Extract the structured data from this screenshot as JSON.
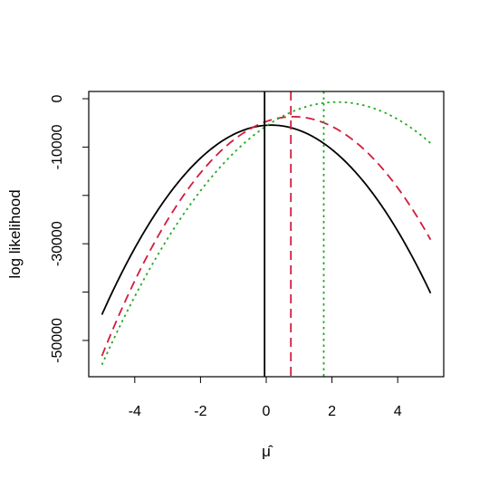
{
  "chart_data": {
    "type": "line",
    "title": "",
    "xlabel": "μ̂",
    "ylabel": "log likelihood",
    "xlim": [
      -5.4,
      5.4
    ],
    "ylim": [
      -57500,
      1500
    ],
    "xticks": [
      -4,
      -2,
      0,
      2,
      4
    ],
    "xtick_labels": [
      "-4",
      "-2",
      "0",
      "2",
      "4"
    ],
    "yticks": [
      0,
      -10000,
      -30000,
      -50000
    ],
    "ytick_labels": [
      "0",
      "-10000",
      "-30000",
      "-50000"
    ],
    "y_minor_ticks": [
      -20000,
      -40000
    ],
    "grid": false,
    "legend": null,
    "series": [
      {
        "color": "#000000",
        "dash": "solid",
        "x": [
          -5,
          -4,
          -3,
          -2,
          -1,
          0,
          1,
          2,
          3,
          4,
          5
        ],
        "y": [
          -42000,
          -32000,
          -22000,
          -14000,
          -8500,
          -4500,
          -5000,
          -9500,
          -16500,
          -27000,
          -42000
        ]
      },
      {
        "color": "#d01c3c",
        "dash": "dashed",
        "x": [
          -5,
          -4,
          -3,
          -2,
          -1,
          0,
          1,
          2,
          3,
          4,
          5
        ],
        "y": [
          -52000,
          -38000,
          -26000,
          -16000,
          -9000,
          -4800,
          -3500,
          -5000,
          -9500,
          -18000,
          -30500
        ]
      },
      {
        "color": "#22aa22",
        "dash": "dotted",
        "x": [
          -5,
          -4,
          -3,
          -2,
          -1,
          0,
          1,
          2,
          3,
          4,
          5
        ],
        "y": [
          -55500,
          -41000,
          -29000,
          -18500,
          -10500,
          -4700,
          -2500,
          -1800,
          -2600,
          -4500,
          -8000
        ]
      }
    ],
    "vlines": [
      {
        "x": -0.05,
        "color": "#000000",
        "dash": "solid"
      },
      {
        "x": 0.75,
        "color": "#d01c3c",
        "dash": "dashed"
      },
      {
        "x": 1.75,
        "color": "#22aa22",
        "dash": "dotted"
      }
    ]
  }
}
